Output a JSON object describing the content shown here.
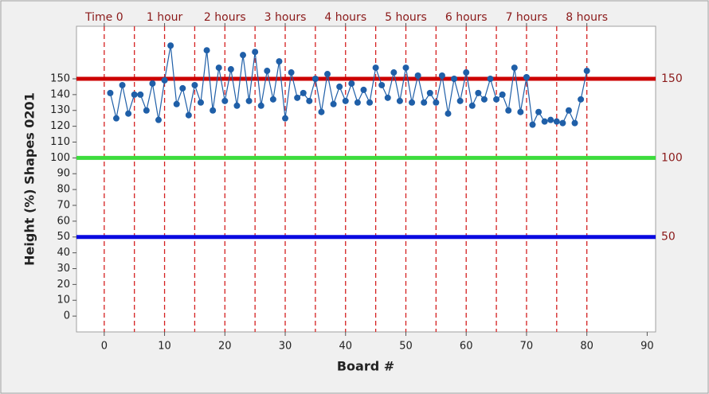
{
  "chart_data": {
    "type": "line",
    "y_label": "Height (%) Shapes 0201",
    "x_label": "Board #",
    "x": [
      1,
      2,
      3,
      4,
      5,
      6,
      7,
      8,
      9,
      10,
      11,
      12,
      13,
      14,
      15,
      16,
      17,
      18,
      19,
      20,
      21,
      22,
      23,
      24,
      25,
      26,
      27,
      28,
      29,
      30,
      31,
      32,
      33,
      34,
      35,
      36,
      37,
      38,
      39,
      40,
      41,
      42,
      43,
      44,
      45,
      46,
      47,
      48,
      49,
      50,
      51,
      52,
      53,
      54,
      55,
      56,
      57,
      58,
      59,
      60,
      61,
      62,
      63,
      64,
      65,
      66,
      67,
      68,
      69,
      70,
      71,
      72,
      73,
      74,
      75,
      76,
      77,
      78,
      79,
      80
    ],
    "series": [
      {
        "color": "#1f5fa8",
        "values": [
          141,
          125,
          146,
          128,
          140,
          140,
          130,
          147,
          124,
          149,
          171,
          134,
          144,
          127,
          146,
          135,
          168,
          130,
          157,
          136,
          156,
          133,
          165,
          136,
          167,
          133,
          155,
          137,
          161,
          125,
          154,
          138,
          141,
          136,
          150,
          129,
          153,
          134,
          145,
          136,
          147,
          135,
          143,
          135,
          157,
          146,
          138,
          154,
          136,
          157,
          135,
          152,
          135,
          141,
          135,
          152,
          128,
          150,
          136,
          154,
          133,
          141,
          137,
          150,
          137,
          140,
          130,
          157,
          129,
          151,
          121,
          129,
          123,
          124,
          123,
          122,
          130,
          122,
          137,
          155
        ]
      }
    ],
    "xlim": [
      -4.6,
      91.4
    ],
    "xticks": [
      0,
      10,
      20,
      30,
      40,
      50,
      60,
      70,
      80,
      90
    ],
    "ylim": [
      -10,
      183.2
    ],
    "yticks": [
      0,
      10,
      20,
      30,
      40,
      50,
      60,
      70,
      80,
      90,
      100,
      110,
      120,
      130,
      140,
      150
    ],
    "vlines": [
      0,
      5,
      10,
      15,
      20,
      25,
      30,
      35,
      40,
      45,
      50,
      55,
      60,
      65,
      70,
      75,
      80
    ],
    "vline_color": "#d42020",
    "top_ticks": [
      {
        "value": 0,
        "label": "Time 0"
      },
      {
        "value": 10,
        "label": "1 hour"
      },
      {
        "value": 20,
        "label": "2 hours"
      },
      {
        "value": 30,
        "label": "3 hours"
      },
      {
        "value": 40,
        "label": "4 hours"
      },
      {
        "value": 50,
        "label": "5 hours"
      },
      {
        "value": 60,
        "label": "6 hours"
      },
      {
        "value": 70,
        "label": "7 hours"
      },
      {
        "value": 80,
        "label": "8 hours"
      }
    ],
    "hlines": [
      {
        "value": 150,
        "color": "#cc0000"
      },
      {
        "value": 100,
        "color": "#3ddc3d"
      },
      {
        "value": 50,
        "color": "#0a0ae0"
      }
    ]
  }
}
